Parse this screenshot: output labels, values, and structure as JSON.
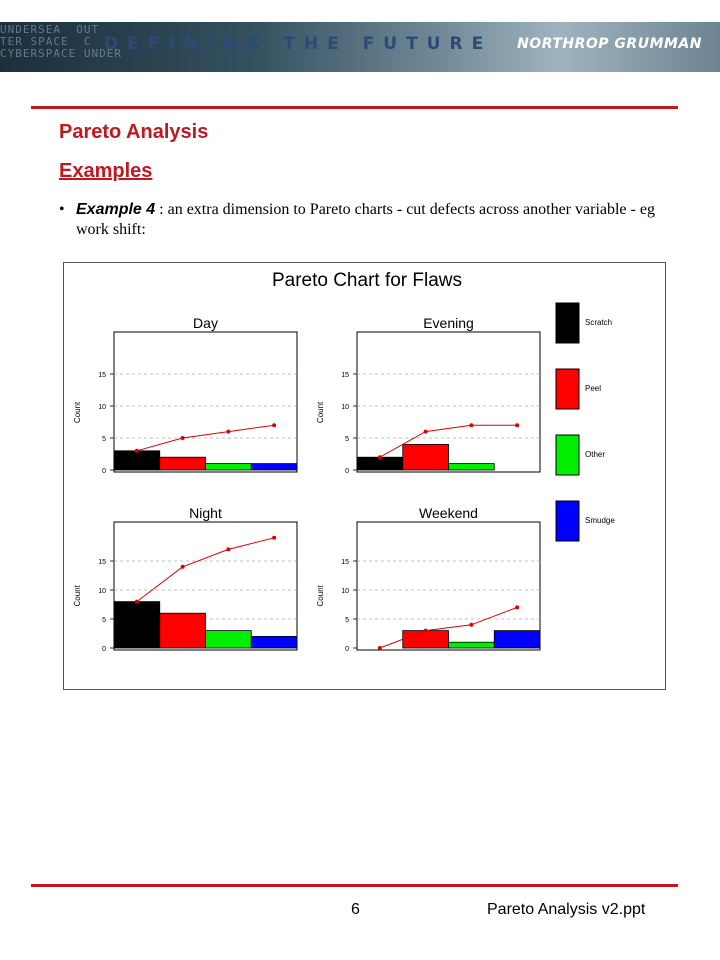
{
  "header": {
    "tagline": "DEFINING THE FUTURE",
    "brand": "NORTHROP GRUMMAN",
    "background_text": "UNDERSEA  OUT\nTER SPACE  C\nCYBERSPACE UNDER"
  },
  "slide": {
    "title": "Pareto Analysis",
    "subtitle": "Examples",
    "bullet": {
      "marker": "•",
      "label": "Example 4",
      "text": " : an extra dimension to Pareto charts - cut defects across another variable - eg work shift:"
    }
  },
  "footer": {
    "page_number": "6",
    "file_name": "Pareto Analysis v2.ppt"
  },
  "colors": {
    "accent": "#c0181e",
    "Scratch": "#000000",
    "Peel": "#ff0000",
    "Other": "#00ee00",
    "Smudge": "#0000ff",
    "cumulative_line": "#dd0000"
  },
  "chart_data": {
    "type": "bar",
    "title": "Pareto Chart for Flaws",
    "ylabel": "Count",
    "ylim": [
      0,
      20
    ],
    "yticks": [
      0,
      5,
      10,
      15
    ],
    "grid": true,
    "legend_placement": "right",
    "legend": [
      "Scratch",
      "Peel",
      "Other",
      "Smudge"
    ],
    "panels": [
      {
        "name": "Day",
        "bars": [
          {
            "category": "Scratch",
            "value": 3
          },
          {
            "category": "Peel",
            "value": 2
          },
          {
            "category": "Other",
            "value": 1
          },
          {
            "category": "Smudge",
            "value": 1
          }
        ],
        "cumulative": [
          3,
          5,
          6,
          7
        ]
      },
      {
        "name": "Evening",
        "bars": [
          {
            "category": "Scratch",
            "value": 2
          },
          {
            "category": "Peel",
            "value": 4
          },
          {
            "category": "Other",
            "value": 1
          },
          {
            "category": "Smudge",
            "value": 0
          }
        ],
        "cumulative": [
          2,
          6,
          7,
          7
        ]
      },
      {
        "name": "Night",
        "bars": [
          {
            "category": "Scratch",
            "value": 8
          },
          {
            "category": "Peel",
            "value": 6
          },
          {
            "category": "Other",
            "value": 3
          },
          {
            "category": "Smudge",
            "value": 2
          }
        ],
        "cumulative": [
          8,
          14,
          17,
          19
        ]
      },
      {
        "name": "Weekend",
        "bars": [
          {
            "category": "Scratch",
            "value": 0
          },
          {
            "category": "Peel",
            "value": 3
          },
          {
            "category": "Other",
            "value": 1
          },
          {
            "category": "Smudge",
            "value": 3
          }
        ],
        "cumulative": [
          0,
          3,
          4,
          7
        ]
      }
    ]
  }
}
